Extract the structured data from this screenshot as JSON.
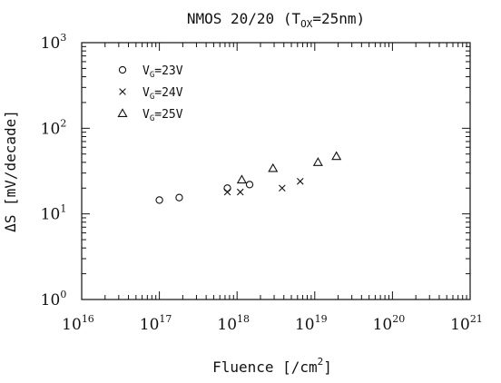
{
  "chart_data": {
    "type": "scatter",
    "title": "NMOS 20/20 (T",
    "title_sub": "OX",
    "title_tail": "=25nm)",
    "xlabel": "Fluence [/cm",
    "xlabel_sup": "2",
    "xlabel_tail": "]",
    "ylabel": "ΔS [mV/decade]",
    "xscale": "log",
    "yscale": "log",
    "xlim": [
      1e+16,
      1e+21
    ],
    "ylim": [
      1,
      1000
    ],
    "x_ticks": [
      {
        "base": "10",
        "exp": "16",
        "value": 1e+16
      },
      {
        "base": "10",
        "exp": "17",
        "value": 1e+17
      },
      {
        "base": "10",
        "exp": "18",
        "value": 1e+18
      },
      {
        "base": "10",
        "exp": "19",
        "value": 1e+19
      },
      {
        "base": "10",
        "exp": "20",
        "value": 1e+20
      },
      {
        "base": "10",
        "exp": "21",
        "value": 1e+21
      }
    ],
    "y_ticks": [
      {
        "base": "10",
        "exp": "0",
        "value": 1
      },
      {
        "base": "10",
        "exp": "1",
        "value": 10
      },
      {
        "base": "10",
        "exp": "2",
        "value": 100
      },
      {
        "base": "10",
        "exp": "3",
        "value": 1000
      }
    ],
    "grid": false,
    "legend_position": "top-left",
    "series": [
      {
        "name": "V",
        "name_sub": "G",
        "name_tail": "=23V",
        "marker": "circle",
        "points": [
          {
            "x": 1e+17,
            "y": 14.5
          },
          {
            "x": 1.8e+17,
            "y": 15.5
          },
          {
            "x": 7.5e+17,
            "y": 20
          },
          {
            "x": 1.45e+18,
            "y": 22
          }
        ]
      },
      {
        "name": "V",
        "name_sub": "G",
        "name_tail": "=24V",
        "marker": "x",
        "points": [
          {
            "x": 7.5e+17,
            "y": 18
          },
          {
            "x": 1.1e+18,
            "y": 18
          },
          {
            "x": 3.8e+18,
            "y": 20
          },
          {
            "x": 6.5e+18,
            "y": 24
          }
        ]
      },
      {
        "name": "V",
        "name_sub": "G",
        "name_tail": "=25V",
        "marker": "triangle",
        "points": [
          {
            "x": 1.15e+18,
            "y": 25
          },
          {
            "x": 2.9e+18,
            "y": 34
          },
          {
            "x": 1.1e+19,
            "y": 40
          },
          {
            "x": 1.9e+19,
            "y": 47
          }
        ]
      }
    ]
  }
}
